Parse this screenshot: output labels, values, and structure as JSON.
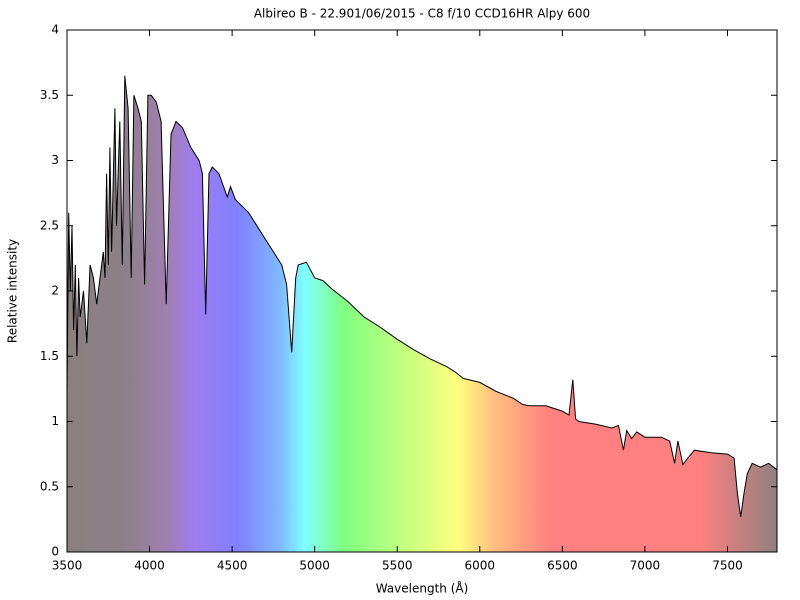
{
  "chart_data": {
    "type": "line",
    "title": "Albireo B - 22.901/06/2015 - C8 f/10 CCD16HR Alpy 600",
    "x_label": "Wavelength (Å)",
    "y_label": "Relative intensity",
    "color": "#000000",
    "fill": "spectrum",
    "xlim": [
      3500,
      7800
    ],
    "xticks": [
      3500,
      4000,
      4500,
      5000,
      5500,
      6000,
      6500,
      7000,
      7500
    ],
    "ylim": [
      0,
      4
    ],
    "yticks": [
      0,
      0.5,
      1,
      1.5,
      2,
      2.5,
      3,
      3.5,
      4
    ],
    "x": [
      3500,
      3510,
      3520,
      3530,
      3540,
      3550,
      3560,
      3570,
      3580,
      3600,
      3620,
      3640,
      3660,
      3680,
      3700,
      3720,
      3730,
      3740,
      3750,
      3760,
      3770,
      3790,
      3800,
      3820,
      3835,
      3850,
      3870,
      3889,
      3905,
      3930,
      3950,
      3970,
      3990,
      4010,
      4040,
      4070,
      4101,
      4130,
      4160,
      4200,
      4250,
      4300,
      4320,
      4340,
      4360,
      4380,
      4420,
      4471,
      4490,
      4520,
      4600,
      4650,
      4700,
      4750,
      4800,
      4830,
      4861,
      4885,
      4900,
      4950,
      5000,
      5050,
      5100,
      5200,
      5300,
      5400,
      5500,
      5600,
      5700,
      5800,
      5850,
      5900,
      6000,
      6100,
      6200,
      6260,
      6300,
      6400,
      6500,
      6540,
      6563,
      6580,
      6600,
      6700,
      6800,
      6840,
      6870,
      6890,
      6920,
      6950,
      7000,
      7100,
      7150,
      7180,
      7200,
      7230,
      7260,
      7300,
      7400,
      7500,
      7540,
      7560,
      7580,
      7600,
      7620,
      7650,
      7700,
      7750,
      7800
    ],
    "values": [
      1.2,
      2.6,
      2.0,
      2.5,
      1.7,
      2.2,
      1.5,
      2.1,
      1.8,
      2.0,
      1.6,
      2.2,
      2.1,
      1.9,
      2.1,
      2.3,
      2.1,
      2.9,
      2.2,
      3.1,
      2.3,
      3.4,
      2.5,
      3.3,
      2.2,
      3.65,
      3.4,
      2.1,
      3.5,
      3.4,
      3.3,
      2.05,
      3.5,
      3.5,
      3.45,
      3.3,
      1.9,
      3.2,
      3.3,
      3.25,
      3.1,
      3.0,
      2.9,
      1.82,
      2.9,
      2.95,
      2.9,
      2.72,
      2.8,
      2.7,
      2.6,
      2.5,
      2.4,
      2.3,
      2.2,
      2.05,
      1.53,
      2.1,
      2.2,
      2.22,
      2.1,
      2.08,
      2.02,
      1.92,
      1.8,
      1.72,
      1.63,
      1.55,
      1.48,
      1.42,
      1.38,
      1.33,
      1.3,
      1.23,
      1.18,
      1.13,
      1.12,
      1.12,
      1.08,
      1.05,
      1.32,
      1.02,
      1.0,
      0.98,
      0.95,
      0.97,
      0.78,
      0.93,
      0.87,
      0.92,
      0.88,
      0.88,
      0.85,
      0.68,
      0.85,
      0.67,
      0.72,
      0.78,
      0.76,
      0.75,
      0.72,
      0.45,
      0.27,
      0.45,
      0.6,
      0.68,
      0.65,
      0.68,
      0.63
    ]
  }
}
